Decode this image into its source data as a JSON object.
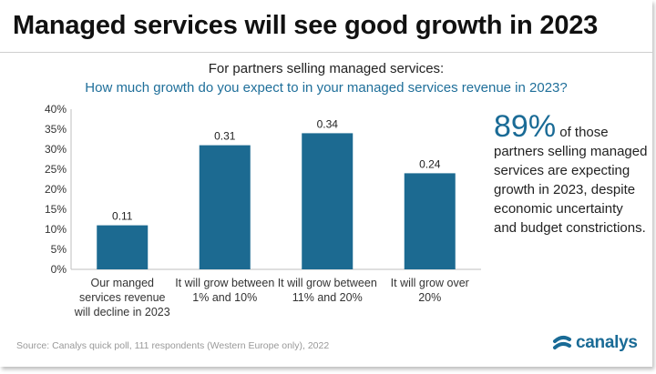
{
  "title": "Managed services will see good growth in 2023",
  "subtitle_line1": "For partners selling managed services:",
  "subtitle_line2": "How much growth do you expect to in your managed services revenue in 2023?",
  "callout": {
    "big": "89%",
    "text_inline": " of those",
    "text_rest": "partners selling managed services are expecting growth in 2023, despite economic uncertainty and budget constrictions."
  },
  "source": "Source: Canalys quick poll, 111 respondents (Western Europe only), 2022",
  "logo_text": "canalys",
  "colors": {
    "bar": "#1c6a91",
    "accent": "#1a6b96"
  },
  "chart_data": {
    "type": "bar",
    "categories": [
      "Our manged services revenue will decline in 2023",
      "It will grow between 1% and 10%",
      "It will grow between 11% and 20%",
      "It will grow over 20%"
    ],
    "values": [
      0.11,
      0.31,
      0.34,
      0.24
    ],
    "data_labels": [
      "0.11",
      "0.31",
      "0.34",
      "0.24"
    ],
    "ylim": [
      0,
      0.4
    ],
    "yticks": [
      0,
      0.05,
      0.1,
      0.15,
      0.2,
      0.25,
      0.3,
      0.35,
      0.4
    ],
    "ytick_labels": [
      "0%",
      "5%",
      "10%",
      "15%",
      "20%",
      "25%",
      "30%",
      "35%",
      "40%"
    ],
    "grid": false,
    "legend": "none"
  }
}
